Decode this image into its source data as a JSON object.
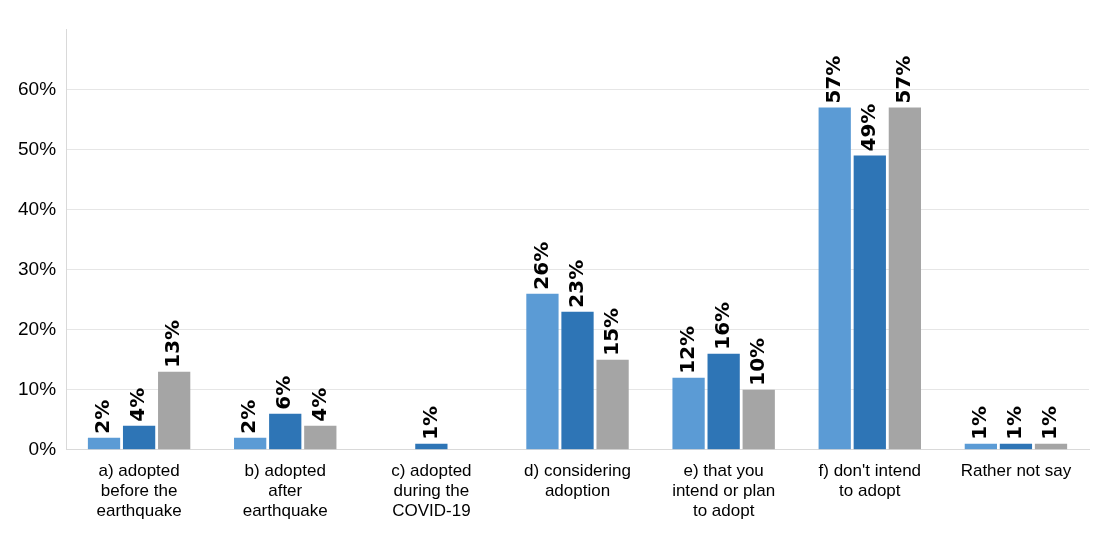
{
  "chart_data": {
    "type": "bar",
    "categories": [
      "a) adopted before the earthquake",
      "b) adopted after earthquake",
      "c) adopted during the COVID-19",
      "d) considering adoption",
      "e) that you intend or plan to adopt",
      "f) don't intend to adopt",
      "Rather not say"
    ],
    "series": [
      {
        "color": "#5b9bd5",
        "values": [
          2,
          2,
          null,
          26,
          12,
          57,
          1
        ],
        "value_labels": [
          "2%",
          "2%",
          null,
          "26%",
          "12%",
          "57%",
          "1%"
        ]
      },
      {
        "color": "#2e75b6",
        "values": [
          4,
          6,
          1,
          23,
          16,
          49,
          1
        ],
        "value_labels": [
          "4%",
          "6%",
          "1%",
          "23%",
          "16%",
          "49%",
          "1%"
        ]
      },
      {
        "color": "#a5a5a5",
        "values": [
          13,
          4,
          null,
          15,
          10,
          57,
          1
        ],
        "value_labels": [
          "13%",
          "4%",
          null,
          "15%",
          "10%",
          "57%",
          "1%"
        ]
      }
    ],
    "ylim": [
      0,
      70
    ],
    "yticks": [
      {
        "value": 0,
        "label": "0%"
      },
      {
        "value": 10,
        "label": "10%"
      },
      {
        "value": 20,
        "label": "20%"
      },
      {
        "value": 30,
        "label": "30%"
      },
      {
        "value": 40,
        "label": "40%"
      },
      {
        "value": 50,
        "label": "50%"
      },
      {
        "value": 60,
        "label": "60%"
      }
    ],
    "grid": "y",
    "legend": false
  }
}
